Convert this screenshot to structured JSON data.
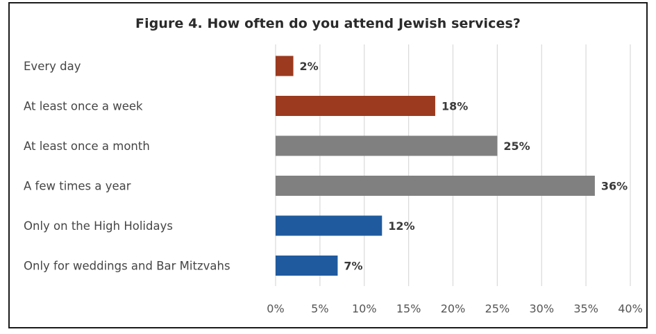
{
  "chart_data": {
    "type": "bar",
    "orientation": "horizontal",
    "title": "Figure 4. How often do you attend Jewish services?",
    "categories": [
      "Every day",
      "At least once a week",
      "At least once a month",
      "A few times a year",
      "Only on the High Holidays",
      "Only for weddings and Bar Mitzvahs"
    ],
    "values": [
      2,
      18,
      25,
      36,
      12,
      7
    ],
    "data_labels": [
      "2%",
      "18%",
      "25%",
      "36%",
      "12%",
      "7%"
    ],
    "bar_colors": [
      "#9b3a1f",
      "#9b3a1f",
      "#808080",
      "#808080",
      "#1f5a9e",
      "#1f5a9e"
    ],
    "xlim": [
      0,
      40
    ],
    "xticks": [
      0,
      5,
      10,
      15,
      20,
      25,
      30,
      35,
      40
    ],
    "xtick_labels": [
      "0%",
      "5%",
      "10%",
      "15%",
      "20%",
      "25%",
      "30%",
      "35%",
      "40%"
    ],
    "xlabel": "",
    "ylabel": "",
    "grid": true,
    "legend": "none"
  }
}
